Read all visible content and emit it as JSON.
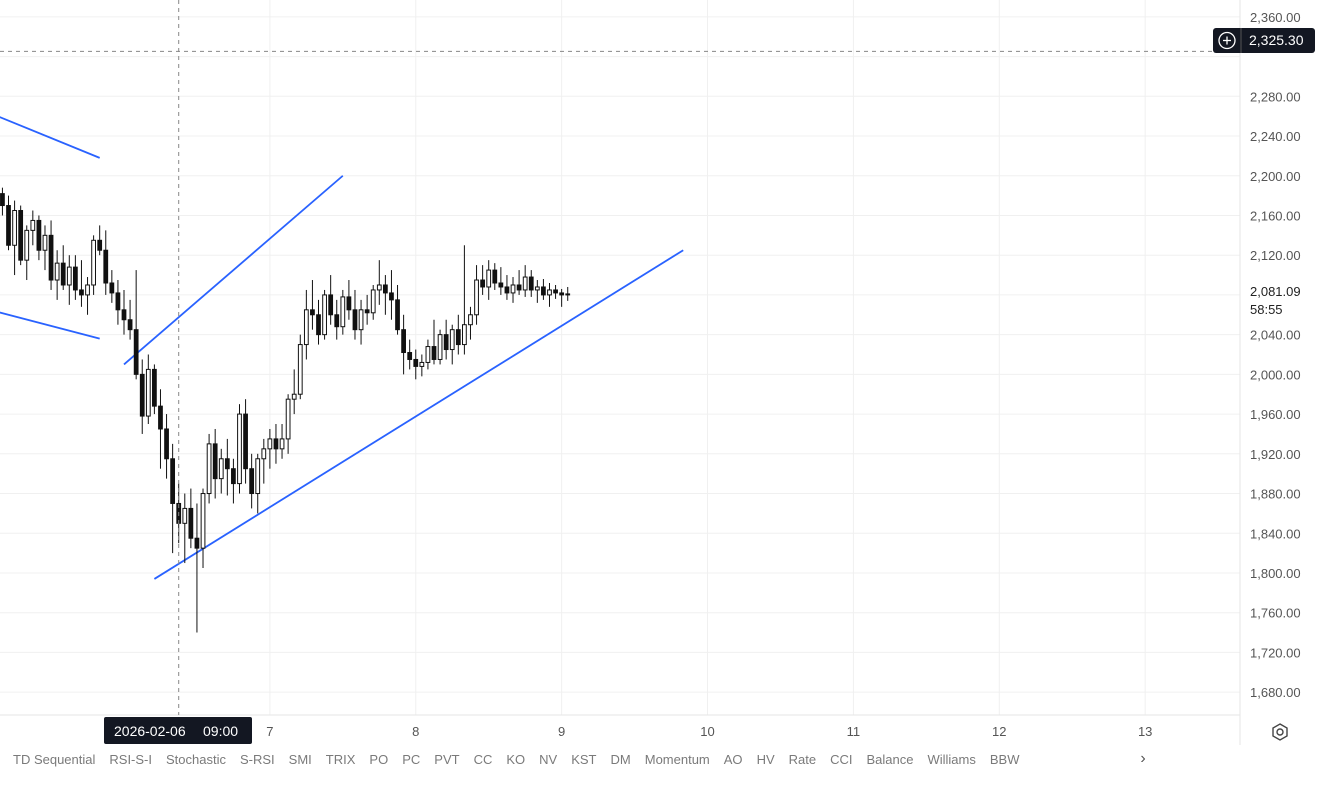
{
  "chart_data": {
    "type": "candlestick",
    "title": "",
    "xlabel": "",
    "ylabel": "",
    "grid": true,
    "ylim": [
      1660,
      2380
    ],
    "y_ticks": [
      "2,360.00",
      "2,280.00",
      "2,240.00",
      "2,200.00",
      "2,160.00",
      "2,120.00",
      "2,040.00",
      "2,000.00",
      "1,960.00",
      "1,920.00",
      "1,880.00",
      "1,840.00",
      "1,800.00",
      "1,760.00",
      "1,720.00",
      "1,680.00"
    ],
    "y_tick_values": [
      2360,
      2280,
      2240,
      2200,
      2160,
      2120,
      2040,
      2000,
      1960,
      1920,
      1880,
      1840,
      1800,
      1760,
      1720,
      1680
    ],
    "x_ticks": [
      "7",
      "8",
      "9",
      "10",
      "11",
      "12",
      "13"
    ],
    "x_tick_days": [
      7,
      8,
      9,
      10,
      11,
      12,
      13
    ],
    "x_range_days": [
      5.15,
      13.65
    ],
    "candle_interval_hours": 1,
    "first_candle_time": "2026-02-05 04:00",
    "candles": [
      [
        2182,
        2188,
        2160,
        2170
      ],
      [
        2170,
        2180,
        2125,
        2130
      ],
      [
        2130,
        2175,
        2100,
        2165
      ],
      [
        2165,
        2170,
        2110,
        2115
      ],
      [
        2115,
        2150,
        2095,
        2145
      ],
      [
        2145,
        2165,
        2130,
        2155
      ],
      [
        2155,
        2160,
        2115,
        2125
      ],
      [
        2125,
        2150,
        2105,
        2140
      ],
      [
        2140,
        2155,
        2085,
        2095
      ],
      [
        2095,
        2125,
        2075,
        2112
      ],
      [
        2112,
        2130,
        2085,
        2090
      ],
      [
        2090,
        2120,
        2070,
        2108
      ],
      [
        2108,
        2120,
        2075,
        2085
      ],
      [
        2085,
        2115,
        2068,
        2080
      ],
      [
        2080,
        2098,
        2060,
        2090
      ],
      [
        2090,
        2140,
        2080,
        2135
      ],
      [
        2135,
        2150,
        2120,
        2125
      ],
      [
        2125,
        2145,
        2080,
        2092
      ],
      [
        2092,
        2105,
        2072,
        2082
      ],
      [
        2082,
        2095,
        2050,
        2065
      ],
      [
        2065,
        2085,
        2040,
        2055
      ],
      [
        2055,
        2075,
        2035,
        2045
      ],
      [
        2045,
        2105,
        1995,
        2000
      ],
      [
        2000,
        2015,
        1940,
        1958
      ],
      [
        1958,
        2020,
        1950,
        2005
      ],
      [
        2005,
        2010,
        1960,
        1968
      ],
      [
        1968,
        1985,
        1905,
        1945
      ],
      [
        1945,
        1960,
        1895,
        1915
      ],
      [
        1915,
        1930,
        1820,
        1870
      ],
      [
        1870,
        1890,
        1830,
        1850
      ],
      [
        1850,
        1880,
        1810,
        1865
      ],
      [
        1865,
        1885,
        1825,
        1835
      ],
      [
        1835,
        1870,
        1740,
        1825
      ],
      [
        1825,
        1885,
        1805,
        1880
      ],
      [
        1880,
        1940,
        1870,
        1930
      ],
      [
        1930,
        1945,
        1875,
        1895
      ],
      [
        1895,
        1925,
        1880,
        1915
      ],
      [
        1915,
        1935,
        1878,
        1905
      ],
      [
        1905,
        1915,
        1870,
        1890
      ],
      [
        1890,
        1970,
        1880,
        1960
      ],
      [
        1960,
        1975,
        1890,
        1905
      ],
      [
        1905,
        1920,
        1865,
        1880
      ],
      [
        1880,
        1920,
        1860,
        1915
      ],
      [
        1915,
        1935,
        1890,
        1925
      ],
      [
        1925,
        1945,
        1905,
        1935
      ],
      [
        1935,
        1950,
        1910,
        1925
      ],
      [
        1925,
        1950,
        1915,
        1935
      ],
      [
        1935,
        1980,
        1920,
        1975
      ],
      [
        1975,
        2005,
        1960,
        1980
      ],
      [
        1980,
        2040,
        1975,
        2030
      ],
      [
        2030,
        2085,
        2015,
        2065
      ],
      [
        2065,
        2095,
        2045,
        2060
      ],
      [
        2060,
        2075,
        2030,
        2040
      ],
      [
        2040,
        2085,
        2035,
        2080
      ],
      [
        2080,
        2100,
        2050,
        2060
      ],
      [
        2060,
        2075,
        2035,
        2048
      ],
      [
        2048,
        2085,
        2040,
        2078
      ],
      [
        2078,
        2095,
        2055,
        2065
      ],
      [
        2065,
        2085,
        2035,
        2045
      ],
      [
        2045,
        2075,
        2030,
        2065
      ],
      [
        2065,
        2080,
        2050,
        2062
      ],
      [
        2062,
        2090,
        2055,
        2085
      ],
      [
        2085,
        2115,
        2070,
        2090
      ],
      [
        2090,
        2100,
        2060,
        2082
      ],
      [
        2082,
        2105,
        2055,
        2075
      ],
      [
        2075,
        2090,
        2040,
        2045
      ],
      [
        2045,
        2060,
        2000,
        2022
      ],
      [
        2022,
        2035,
        2005,
        2015
      ],
      [
        2015,
        2025,
        1995,
        2008
      ],
      [
        2008,
        2020,
        1998,
        2012
      ],
      [
        2012,
        2035,
        2005,
        2028
      ],
      [
        2028,
        2055,
        2010,
        2015
      ],
      [
        2015,
        2045,
        2010,
        2040
      ],
      [
        2040,
        2055,
        2015,
        2025
      ],
      [
        2025,
        2050,
        2010,
        2045
      ],
      [
        2045,
        2060,
        2020,
        2030
      ],
      [
        2030,
        2130,
        2020,
        2050
      ],
      [
        2050,
        2068,
        2035,
        2060
      ],
      [
        2060,
        2110,
        2050,
        2095
      ],
      [
        2095,
        2110,
        2080,
        2088
      ],
      [
        2088,
        2115,
        2075,
        2105
      ],
      [
        2105,
        2112,
        2085,
        2092
      ],
      [
        2092,
        2108,
        2080,
        2088
      ],
      [
        2088,
        2100,
        2075,
        2082
      ],
      [
        2082,
        2098,
        2072,
        2090
      ],
      [
        2090,
        2105,
        2080,
        2085
      ],
      [
        2085,
        2110,
        2078,
        2098
      ],
      [
        2098,
        2105,
        2078,
        2085
      ],
      [
        2085,
        2095,
        2072,
        2088
      ],
      [
        2088,
        2096,
        2075,
        2080
      ],
      [
        2080,
        2092,
        2068,
        2085
      ],
      [
        2085,
        2090,
        2076,
        2082
      ],
      [
        2082,
        2086,
        2068,
        2080
      ],
      [
        2080,
        2088,
        2074,
        2081
      ]
    ],
    "trendlines": [
      {
        "color": "#2962ff",
        "from": {
          "t": "2026-02-05 00:00",
          "price": 2268
        },
        "to": {
          "t": "2026-02-05 20:00",
          "price": 2218
        }
      },
      {
        "color": "#2962ff",
        "from": {
          "t": "2026-02-05 00:00",
          "price": 2068
        },
        "to": {
          "t": "2026-02-05 20:00",
          "price": 2036
        }
      },
      {
        "color": "#2962ff",
        "from": {
          "t": "2026-02-06 00:00",
          "price": 2010
        },
        "to": {
          "t": "2026-02-07 12:00",
          "price": 2200
        }
      },
      {
        "color": "#2962ff",
        "from": {
          "t": "2026-02-06 05:00",
          "price": 1794
        },
        "to": {
          "t": "2026-02-09 20:00",
          "price": 2125
        }
      }
    ],
    "crosshair": {
      "price": 2325.3,
      "time": "2026-02-06 09:00"
    },
    "current_price": 2081.09,
    "countdown": "58:55"
  },
  "labels": {
    "crosshair_price": "2,325.30",
    "crosshair_date": "2026-02-06",
    "crosshair_time": "09:00",
    "current_price": "2,081.09",
    "countdown": "58:55"
  },
  "indicators": [
    "TD Sequential",
    "RSI-S-I",
    "Stochastic",
    "S-RSI",
    "SMI",
    "TRIX",
    "PO",
    "PC",
    "PVT",
    "CC",
    "KO",
    "NV",
    "KST",
    "DM",
    "Momentum",
    "AO",
    "HV",
    "Rate",
    "CCI",
    "Balance",
    "Williams",
    "BBW"
  ],
  "icons": {
    "crosshair_add": "plus-circle-icon",
    "settings": "settings-icon",
    "more": "chevron-right-icon"
  },
  "colors": {
    "trendline": "#2962ff",
    "candle_up": "#ffffff",
    "candle_down": "#111111",
    "grid": "#f0f0f0",
    "tag_bg": "#131722"
  }
}
